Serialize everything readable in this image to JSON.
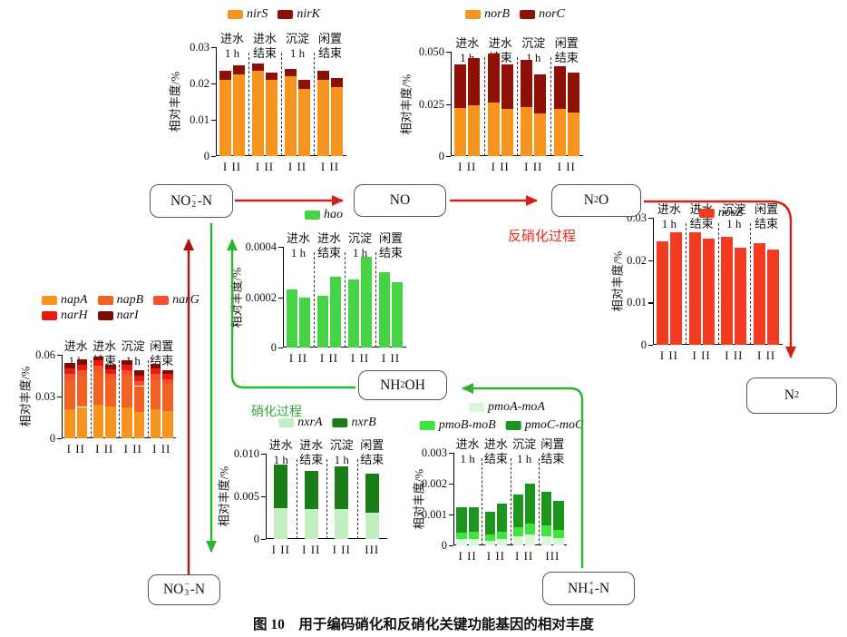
{
  "caption": "图 10　用于编码硝化和反硝化关键功能基因的相对丰度",
  "process_labels": {
    "denitrification": "反硝化过程",
    "nitrification": "硝化过程"
  },
  "boxes": [
    {
      "id": "no2n",
      "parts": [
        {
          "t": "NO"
        },
        {
          "sub": "2",
          "sup": "−"
        },
        {
          "t": "-N"
        }
      ]
    },
    {
      "id": "no",
      "parts": [
        {
          "t": "NO"
        }
      ]
    },
    {
      "id": "n2o",
      "parts": [
        {
          "t": "N"
        },
        {
          "sub": "2"
        },
        {
          "t": "O"
        }
      ]
    },
    {
      "id": "nh2oh",
      "parts": [
        {
          "t": "NH"
        },
        {
          "sub": "2"
        },
        {
          "t": "OH"
        }
      ]
    },
    {
      "id": "n2",
      "parts": [
        {
          "t": "N"
        },
        {
          "sub": "2"
        }
      ]
    },
    {
      "id": "no3n",
      "parts": [
        {
          "t": "NO"
        },
        {
          "sub": "3",
          "sup": "−"
        },
        {
          "t": "-N"
        }
      ]
    },
    {
      "id": "nh4n",
      "parts": [
        {
          "t": "NH"
        },
        {
          "sub": "4",
          "sup": "+"
        },
        {
          "t": "-N"
        }
      ]
    }
  ],
  "arrow_colors": {
    "red": "#D42117",
    "dark_red": "#AA1111",
    "green": "#2CB42C"
  },
  "chart_data": [
    {
      "id": "nir",
      "type": "bar",
      "stacked": true,
      "ylabel": "相对丰度/%",
      "ymax": 0.03,
      "yticks": [
        "0",
        "0.01",
        "0.02",
        "0.03"
      ],
      "group_headers": [
        [
          "进水",
          "1 h"
        ],
        [
          "进水",
          "结束"
        ],
        [
          "沉淀",
          "1 h"
        ],
        [
          "闲置",
          "结束"
        ]
      ],
      "xlabels": [
        "I II",
        "I II",
        "I II",
        "I II"
      ],
      "bars_per_group": 2,
      "series": [
        {
          "name": "nirS",
          "color": "#F7941D",
          "values": [
            0.021,
            0.0225,
            0.0235,
            0.021,
            0.022,
            0.0185,
            0.021,
            0.019
          ]
        },
        {
          "name": "nirK",
          "color": "#8E1007",
          "values": [
            0.0025,
            0.0025,
            0.002,
            0.002,
            0.002,
            0.0025,
            0.0025,
            0.0025
          ]
        }
      ],
      "legend_rows": [
        [
          "nirS",
          "nirK"
        ]
      ]
    },
    {
      "id": "nor",
      "type": "bar",
      "stacked": true,
      "ylabel": "相对丰度/%",
      "ymax": 0.05,
      "yticks": [
        "0",
        "0.025",
        "0.050"
      ],
      "group_headers": [
        [
          "进水",
          "1 h"
        ],
        [
          "进水",
          "结束"
        ],
        [
          "沉淀",
          "1 h"
        ],
        [
          "闲置",
          "结束"
        ]
      ],
      "xlabels": [
        "I II",
        "I II",
        "I II",
        "I II"
      ],
      "bars_per_group": 2,
      "series": [
        {
          "name": "norB",
          "color": "#F7941D",
          "values": [
            0.023,
            0.0245,
            0.0255,
            0.0225,
            0.0235,
            0.0205,
            0.0225,
            0.021
          ]
        },
        {
          "name": "norC",
          "color": "#8E1007",
          "values": [
            0.021,
            0.0225,
            0.0235,
            0.0215,
            0.0225,
            0.0185,
            0.0205,
            0.019
          ]
        }
      ],
      "legend_rows": [
        [
          "norB",
          "norC"
        ]
      ]
    },
    {
      "id": "nap",
      "type": "bar",
      "stacked": true,
      "ylabel": "相对丰度/%",
      "ymax": 0.06,
      "yticks": [
        "0",
        "0.03",
        "0.06"
      ],
      "group_headers": [
        [
          "进水",
          "1 h"
        ],
        [
          "进水",
          "结束"
        ],
        [
          "沉淀",
          "1 h"
        ],
        [
          "闲置",
          "结束"
        ]
      ],
      "xlabels": [
        "I II",
        "I II",
        "I II",
        "I II"
      ],
      "bars_per_group": 2,
      "series": [
        {
          "name": "napA",
          "color": "#F7941D",
          "values": [
            0.021,
            0.0225,
            0.024,
            0.023,
            0.022,
            0.019,
            0.021,
            0.0195
          ]
        },
        {
          "name": "napB",
          "color": "#F16122",
          "values": [
            0.021,
            0.023,
            0.024,
            0.0195,
            0.023,
            0.0185,
            0.021,
            0.0195
          ]
        },
        {
          "name": "narG",
          "color": "#F4512E",
          "values": [
            0.004,
            0.0035,
            0.004,
            0.0035,
            0.004,
            0.0035,
            0.004,
            0.0035
          ]
        },
        {
          "name": "narH",
          "color": "#E91A0E",
          "values": [
            0.004,
            0.004,
            0.004,
            0.0035,
            0.004,
            0.004,
            0.004,
            0.0035
          ]
        },
        {
          "name": "narI",
          "color": "#7E0D05",
          "values": [
            0.004,
            0.004,
            0.003,
            0.0035,
            0.003,
            0.004,
            0.0035,
            0.003
          ]
        }
      ],
      "legend_rows": [
        [
          "napA",
          "napB",
          "narG"
        ],
        [
          "narH",
          "narI"
        ]
      ]
    },
    {
      "id": "hao",
      "type": "bar",
      "stacked": false,
      "ylabel": "相对丰度/%",
      "ymax": 0.0004,
      "yticks": [
        "0",
        "0.0002",
        "0.0004"
      ],
      "group_headers": [
        [
          "进水",
          "1 h"
        ],
        [
          "进水",
          "结束"
        ],
        [
          "沉淀",
          "1 h"
        ],
        [
          "闲置",
          "结束"
        ]
      ],
      "xlabels": [
        "I II",
        "I II",
        "I II",
        "I II"
      ],
      "bars_per_group": 2,
      "series": [
        {
          "name": "hao",
          "color": "#46D446",
          "values": [
            0.00023,
            0.0002,
            0.000205,
            0.00028,
            0.00027,
            0.00036,
            0.0003,
            0.00026
          ]
        }
      ],
      "legend_rows": [
        [
          "hao"
        ]
      ]
    },
    {
      "id": "nosz",
      "type": "bar",
      "stacked": false,
      "ylabel": "相对丰度/%",
      "ymax": 0.03,
      "yticks": [
        "0",
        "0.01",
        "0.02",
        "0.03"
      ],
      "group_headers": [
        [
          "进水",
          "1 h"
        ],
        [
          "进水",
          "结束"
        ],
        [
          "沉淀",
          "1 h"
        ],
        [
          "闲置",
          "结束"
        ]
      ],
      "xlabels": [
        "I II",
        "I II",
        "I II",
        "I II"
      ],
      "bars_per_group": 2,
      "series": [
        {
          "name": "nosZ",
          "color": "#F23B21",
          "values": [
            0.0245,
            0.0265,
            0.0265,
            0.025,
            0.0255,
            0.023,
            0.024,
            0.0225
          ]
        }
      ],
      "legend_rows": [
        [
          "nosZ"
        ]
      ]
    },
    {
      "id": "nxr",
      "type": "bar",
      "stacked": true,
      "ylabel": "相对丰度/%",
      "ymax": 0.01,
      "yticks": [
        "0",
        "0.005",
        "0.010"
      ],
      "group_headers": [
        [
          "进水",
          "1 h"
        ],
        [
          "进水",
          "结束"
        ],
        [
          "沉淀",
          "1 h"
        ],
        [
          "闲置",
          "结束"
        ]
      ],
      "xlabels": [
        "I II",
        "I II",
        "I II",
        "III"
      ],
      "bars_per_group": 1,
      "series": [
        {
          "name": "nxrA",
          "color": "#C2EFC2",
          "values": [
            0.0036,
            0.0035,
            0.0035,
            0.0031
          ]
        },
        {
          "name": "nxrB",
          "color": "#1A7D1A",
          "values": [
            0.0051,
            0.0045,
            0.005,
            0.0046
          ]
        }
      ],
      "legend_rows": [
        [
          "nxrA",
          "nxrB"
        ]
      ]
    },
    {
      "id": "pmo",
      "type": "bar",
      "stacked": true,
      "ylabel": "相对丰度/%",
      "ymax": 0.003,
      "yticks": [
        "0",
        "0.001",
        "0.002",
        "0.003"
      ],
      "group_headers": [
        [
          "进水",
          "1 h"
        ],
        [
          "进水",
          "结束"
        ],
        [
          "沉淀",
          "1 h"
        ],
        [
          "闲置",
          "结束"
        ]
      ],
      "xlabels": [
        "I II",
        "I II",
        "I II",
        "III"
      ],
      "bars_per_group": 2,
      "series": [
        {
          "name": "pmoA-moA",
          "color": "#D9F6D9",
          "values": [
            0.0002,
            0.0002,
            0.00015,
            0.0002,
            0.0003,
            0.00035,
            0.0003,
            0.00025
          ]
        },
        {
          "name": "pmoB-moB",
          "color": "#3FE43F",
          "values": [
            0.0002,
            0.00025,
            0.0002,
            0.00025,
            0.0003,
            0.00035,
            0.00035,
            0.00025
          ]
        },
        {
          "name": "pmoC-moC",
          "color": "#1E951E",
          "values": [
            0.00085,
            0.0008,
            0.00075,
            0.0009,
            0.00105,
            0.0013,
            0.0011,
            0.00095
          ]
        }
      ],
      "legend_rows": [
        [
          "pmoA-moA"
        ],
        [
          "pmoB-moB",
          "pmoC-moC"
        ]
      ]
    }
  ]
}
